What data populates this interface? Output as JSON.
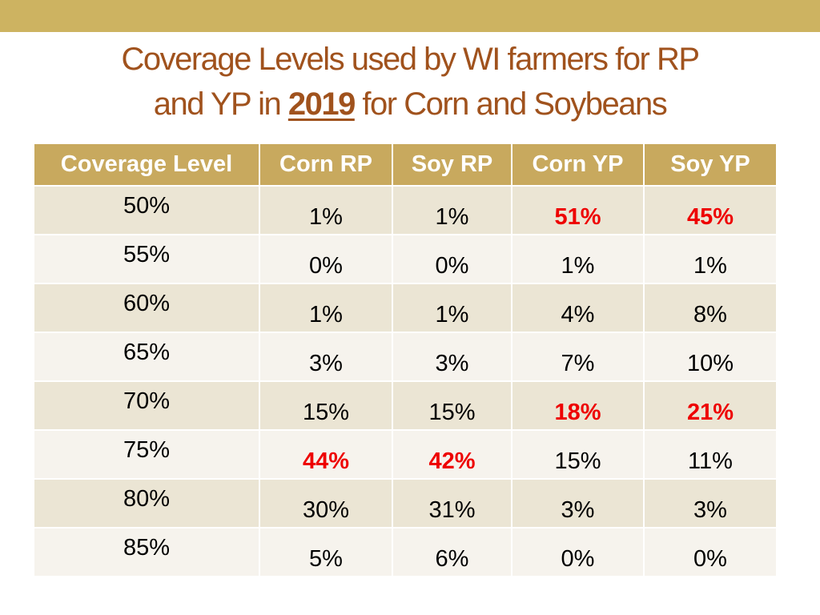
{
  "colors": {
    "top_band": "#cdb361",
    "title": "#a0521d",
    "header_bg": "#c8a95e",
    "row_odd": "#ebe5d4",
    "row_even": "#f6f3ed",
    "highlight": "#ee0000"
  },
  "title": {
    "part1": "Coverage Levels used by WI farmers for RP",
    "part2": "and YP in ",
    "year": "2019",
    "part3": " for Corn and Soybeans"
  },
  "table": {
    "headers": [
      "Coverage Level",
      "Corn RP",
      "Soy RP",
      "Corn YP",
      "Soy YP"
    ],
    "rows": [
      {
        "cells": [
          "50%",
          "1%",
          "1%",
          "51%",
          "45%"
        ],
        "highlight": [
          false,
          false,
          false,
          true,
          true
        ]
      },
      {
        "cells": [
          "55%",
          "0%",
          "0%",
          "1%",
          "1%"
        ],
        "highlight": [
          false,
          false,
          false,
          false,
          false
        ]
      },
      {
        "cells": [
          "60%",
          "1%",
          "1%",
          "4%",
          "8%"
        ],
        "highlight": [
          false,
          false,
          false,
          false,
          false
        ]
      },
      {
        "cells": [
          "65%",
          "3%",
          "3%",
          "7%",
          "10%"
        ],
        "highlight": [
          false,
          false,
          false,
          false,
          false
        ]
      },
      {
        "cells": [
          "70%",
          "15%",
          "15%",
          "18%",
          "21%"
        ],
        "highlight": [
          false,
          false,
          false,
          true,
          true
        ]
      },
      {
        "cells": [
          "75%",
          "44%",
          "42%",
          "15%",
          "11%"
        ],
        "highlight": [
          false,
          true,
          true,
          false,
          false
        ]
      },
      {
        "cells": [
          "80%",
          "30%",
          "31%",
          "3%",
          "3%"
        ],
        "highlight": [
          false,
          false,
          false,
          false,
          false
        ]
      },
      {
        "cells": [
          "85%",
          "5%",
          "6%",
          "0%",
          "0%"
        ],
        "highlight": [
          false,
          false,
          false,
          false,
          false
        ]
      }
    ]
  }
}
